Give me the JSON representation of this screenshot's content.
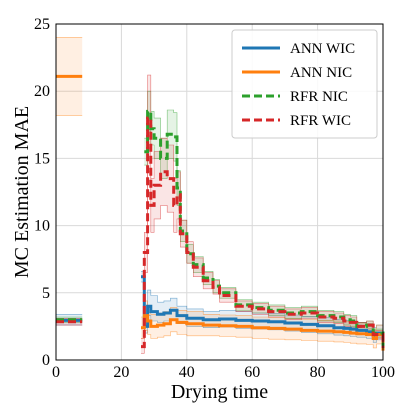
{
  "chart_data": {
    "type": "line",
    "title": "",
    "xlabel": "Drying time",
    "ylabel": "MC Estimation MAE",
    "xlim": [
      0,
      100
    ],
    "ylim": [
      0,
      25
    ],
    "xticks": [
      0,
      20,
      40,
      60,
      80,
      100
    ],
    "yticks": [
      0,
      5,
      10,
      15,
      20,
      25
    ],
    "grid": true,
    "legend_position": "top-right",
    "series": [
      {
        "name": "ANN WIC",
        "color": "#1f77b4",
        "style": "solid",
        "segments": [
          {
            "x": [
              0,
              8
            ],
            "y": [
              2.95,
              2.95
            ],
            "lower": [
              2.6,
              2.6
            ],
            "upper": [
              3.4,
              3.4
            ]
          },
          {
            "x": [
              26,
              27,
              28,
              29,
              31,
              33,
              35,
              37,
              40,
              45,
              50,
              55,
              60,
              65,
              70,
              75,
              80,
              85,
              88,
              90,
              92,
              95,
              97,
              98,
              100
            ],
            "y": [
              6.2,
              2.5,
              4.0,
              3.6,
              3.4,
              3.5,
              3.7,
              3.3,
              3.1,
              3.0,
              3.05,
              2.95,
              2.9,
              2.85,
              2.75,
              2.65,
              2.55,
              2.4,
              2.35,
              2.3,
              2.2,
              2.1,
              1.8,
              2.0,
              0.8
            ],
            "lower": [
              5.8,
              2.0,
              3.3,
              2.9,
              2.8,
              2.9,
              3.0,
              2.7,
              2.5,
              2.4,
              2.45,
              2.35,
              2.3,
              2.25,
              2.15,
              2.05,
              1.95,
              1.85,
              1.8,
              1.75,
              1.7,
              1.6,
              1.3,
              1.5,
              0.5
            ],
            "upper": [
              6.6,
              3.0,
              5.2,
              4.8,
              4.3,
              4.4,
              4.6,
              4.0,
              3.8,
              3.6,
              3.7,
              3.6,
              3.5,
              3.45,
              3.35,
              3.25,
              3.15,
              3.0,
              2.95,
              2.9,
              2.8,
              2.7,
              2.4,
              2.6,
              1.2
            ]
          }
        ]
      },
      {
        "name": "ANN NIC",
        "color": "#ff7f0e",
        "style": "solid",
        "segments": [
          {
            "x": [
              0,
              8
            ],
            "y": [
              21.1,
              21.1
            ],
            "lower": [
              18.2,
              18.2
            ],
            "upper": [
              24.0,
              24.0
            ]
          },
          {
            "x": [
              26,
              27,
              28,
              29,
              31,
              33,
              35,
              37,
              40,
              45,
              50,
              55,
              60,
              65,
              70,
              75,
              80,
              85,
              88,
              90,
              92,
              95,
              97,
              98,
              100
            ],
            "y": [
              2.4,
              3.3,
              2.9,
              2.5,
              2.6,
              2.7,
              3.0,
              2.8,
              2.7,
              2.6,
              2.55,
              2.5,
              2.4,
              2.35,
              2.3,
              2.2,
              2.15,
              2.1,
              2.05,
              2.0,
              1.95,
              1.9,
              1.6,
              1.9,
              0.7
            ],
            "lower": [
              1.6,
              2.2,
              1.9,
              1.6,
              1.7,
              1.8,
              2.1,
              1.9,
              1.8,
              1.8,
              1.75,
              1.7,
              1.6,
              1.55,
              1.5,
              1.45,
              1.4,
              1.35,
              1.3,
              1.25,
              1.2,
              1.15,
              0.9,
              1.2,
              0.4
            ],
            "upper": [
              3.2,
              4.4,
              3.9,
              3.4,
              3.5,
              3.6,
              3.9,
              3.7,
              3.6,
              3.4,
              3.35,
              3.3,
              3.2,
              3.15,
              3.1,
              3.0,
              2.95,
              2.9,
              2.85,
              2.8,
              2.75,
              2.7,
              2.3,
              2.6,
              1.1
            ]
          }
        ]
      },
      {
        "name": "RFR NIC",
        "color": "#2ca02c",
        "style": "dashed",
        "segments": [
          {
            "x": [
              0,
              8
            ],
            "y": [
              3.0,
              3.0
            ],
            "lower": [
              2.8,
              2.8
            ],
            "upper": [
              3.2,
              3.2
            ]
          },
          {
            "x": [
              27,
              28,
              29,
              30,
              32,
              34,
              36,
              37,
              38,
              40,
              42,
              45,
              48,
              50,
              55,
              60,
              65,
              70,
              75,
              80,
              85,
              88,
              90,
              92,
              95,
              97,
              100
            ],
            "y": [
              15.5,
              18.5,
              17.2,
              16.5,
              15.0,
              16.8,
              16.6,
              12.8,
              9.6,
              7.9,
              7.1,
              6.1,
              5.5,
              5.0,
              4.1,
              3.9,
              3.7,
              3.5,
              3.6,
              3.3,
              3.2,
              3.0,
              2.9,
              2.5,
              2.6,
              2.0,
              0.9
            ],
            "lower": [
              14.5,
              17.0,
              16.0,
              15.0,
              13.5,
              15.0,
              14.8,
              11.5,
              8.8,
              7.2,
              6.5,
              5.6,
              5.0,
              4.6,
              3.7,
              3.5,
              3.3,
              3.1,
              3.2,
              2.9,
              2.8,
              2.6,
              2.5,
              2.2,
              2.3,
              1.7,
              0.6
            ],
            "upper": [
              16.5,
              20.0,
              18.5,
              18.0,
              16.5,
              18.6,
              18.4,
              14.1,
              10.4,
              8.6,
              7.7,
              6.6,
              6.0,
              5.4,
              4.5,
              4.3,
              4.1,
              3.9,
              4.0,
              3.7,
              3.6,
              3.4,
              3.3,
              2.8,
              2.9,
              2.3,
              1.2
            ]
          }
        ]
      },
      {
        "name": "RFR WIC",
        "color": "#d62728",
        "style": "dashed",
        "segments": [
          {
            "x": [
              0,
              8
            ],
            "y": [
              2.85,
              2.85
            ],
            "lower": [
              2.6,
              2.6
            ],
            "upper": [
              3.1,
              3.1
            ]
          },
          {
            "x": [
              26,
              27,
              28,
              29,
              30,
              32,
              34,
              36,
              37,
              38,
              40,
              42,
              45,
              48,
              50,
              55,
              60,
              65,
              70,
              75,
              80,
              85,
              88,
              90,
              92,
              95,
              97,
              100
            ],
            "y": [
              1.0,
              8.0,
              18.0,
              11.5,
              13.0,
              14.0,
              13.5,
              11.5,
              12.3,
              9.4,
              8.0,
              6.9,
              5.9,
              5.4,
              4.8,
              4.0,
              3.8,
              3.6,
              3.4,
              3.5,
              3.2,
              3.1,
              2.9,
              2.8,
              2.5,
              2.6,
              1.9,
              0.9
            ],
            "lower": [
              0.5,
              6.5,
              14.0,
              9.5,
              10.5,
              11.5,
              11.0,
              9.5,
              10.5,
              8.4,
              7.2,
              6.2,
              5.3,
              4.9,
              4.3,
              3.6,
              3.4,
              3.2,
              3.0,
              3.1,
              2.8,
              2.7,
              2.5,
              2.4,
              2.2,
              2.3,
              1.6,
              0.6
            ],
            "upper": [
              1.6,
              9.5,
              21.2,
              13.5,
              15.5,
              16.5,
              16.0,
              13.5,
              14.0,
              10.4,
              8.8,
              7.6,
              6.5,
              5.9,
              5.3,
              4.4,
              4.2,
              4.0,
              3.8,
              3.9,
              3.6,
              3.5,
              3.3,
              3.2,
              2.8,
              2.9,
              2.2,
              1.2
            ]
          }
        ]
      }
    ]
  }
}
